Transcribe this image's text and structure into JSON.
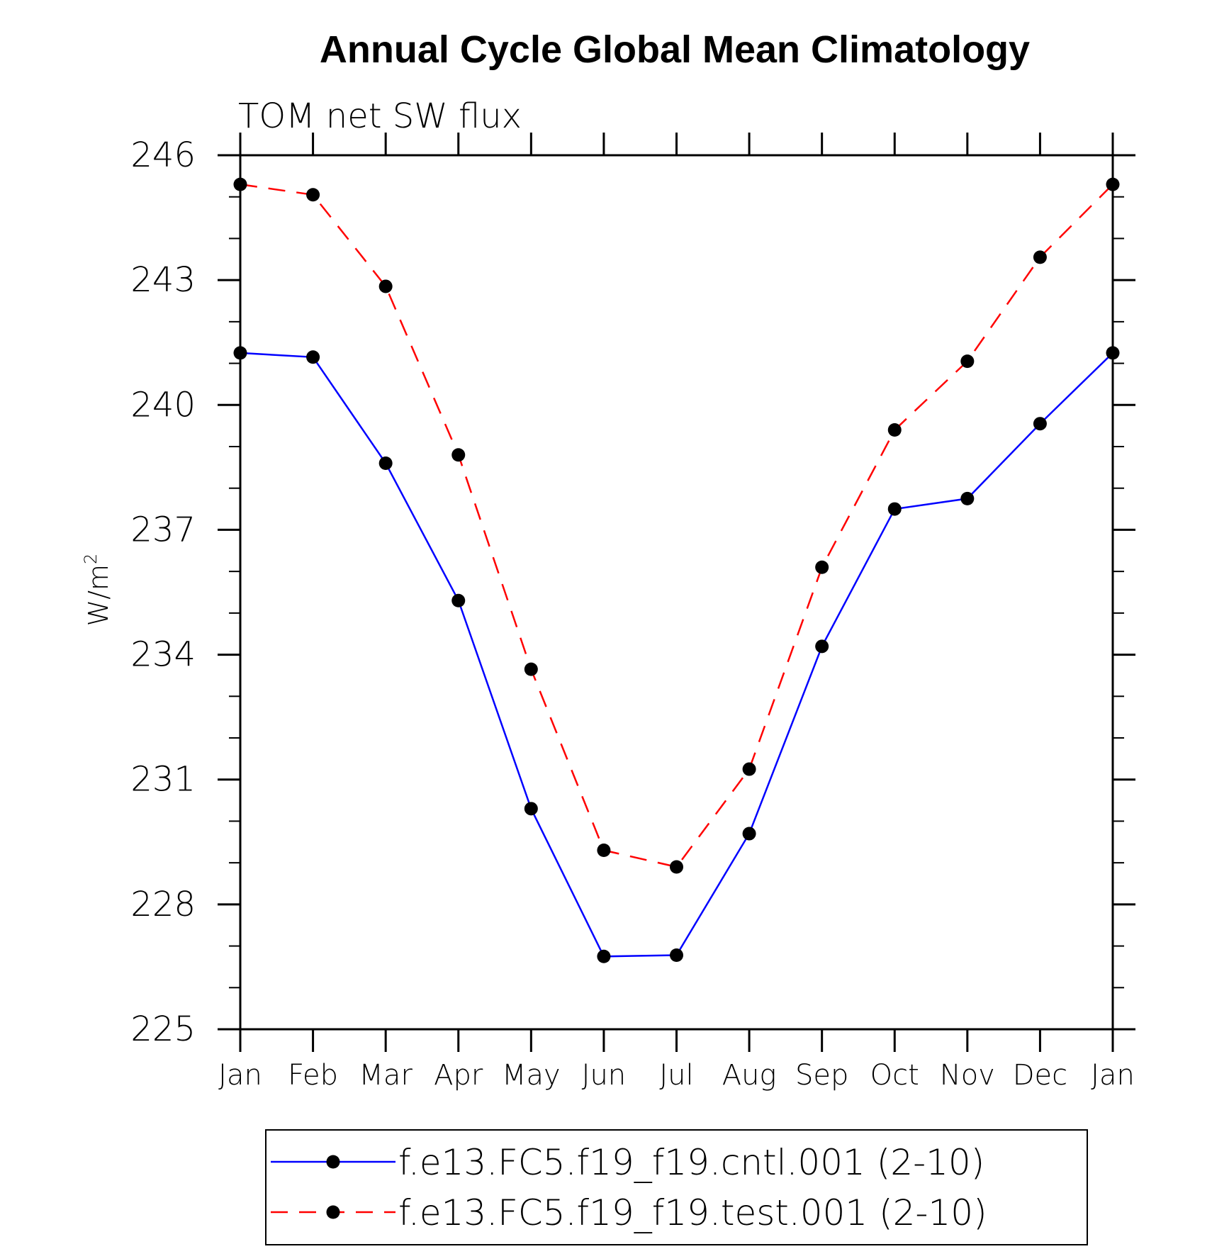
{
  "chart_data": {
    "type": "line",
    "title": "Annual Cycle Global Mean Climatology",
    "subtitle": "TOM net SW flux",
    "ylabel_base": "W/m",
    "ylabel_sup": "2",
    "categories": [
      "Jan",
      "Feb",
      "Mar",
      "Apr",
      "May",
      "Jun",
      "Jul",
      "Aug",
      "Sep",
      "Oct",
      "Nov",
      "Dec",
      "Jan"
    ],
    "y_ticks": [
      "225",
      "228",
      "231",
      "234",
      "237",
      "240",
      "243",
      "246"
    ],
    "ylim": [
      225,
      246
    ],
    "y_minor_step": 1,
    "grid": false,
    "legend_position": "bottom",
    "series": [
      {
        "name": "f.e13.FC5.f19_f19.cntl.001 (2-10)",
        "color": "#0000ff",
        "dash": "solid",
        "values": [
          241.25,
          241.15,
          238.6,
          235.3,
          230.3,
          226.75,
          226.78,
          229.7,
          234.2,
          237.5,
          237.75,
          239.55,
          241.25
        ]
      },
      {
        "name": "f.e13.FC5.f19_f19.test.001 (2-10)",
        "color": "#ff0000",
        "dash": "dashed",
        "values": [
          245.3,
          245.05,
          242.85,
          238.8,
          233.65,
          229.3,
          228.9,
          231.25,
          236.1,
          239.4,
          241.05,
          243.55,
          245.3
        ]
      }
    ],
    "marker_color": "#000000"
  }
}
